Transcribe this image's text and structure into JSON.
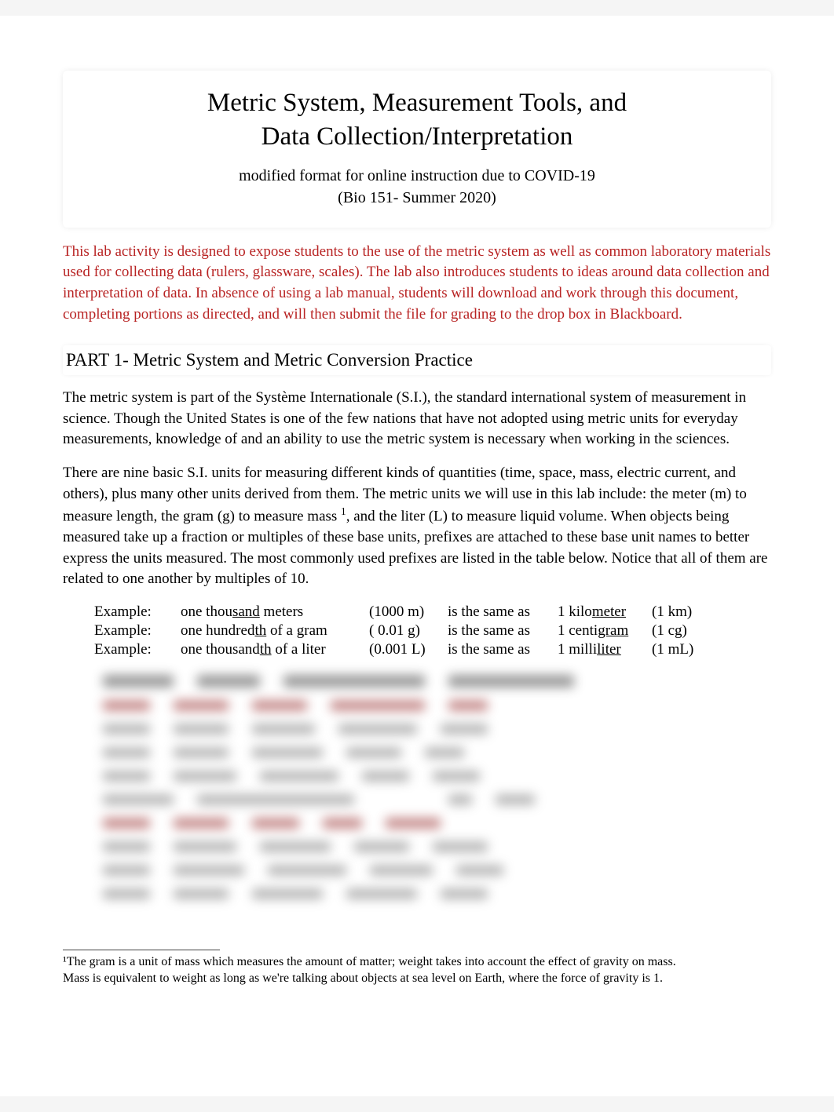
{
  "colors": {
    "text": "#000000",
    "red_text": "#b82323",
    "page_bg": "#ffffff"
  },
  "title": {
    "line1": "Metric System, Measurement Tools, and",
    "line2": "Data Collection/Interpretation",
    "sub1": "modified format for online instruction due to COVID-19",
    "sub2": "(Bio 151- Summer 2020)"
  },
  "intro_red": "This lab activity is designed to expose students to the use of the metric system as well as common laboratory materials used for collecting data (rulers, glassware, scales).   The lab also introduces students to ideas around data collection and interpretation of data.    In absence of using a lab manual, students will download and work through this document, completing portions as directed, and will then submit the file for grading to the drop box in Blackboard.",
  "part1_header": "PART 1- Metric System and Metric Conversion Practice",
  "para1": {
    "pre": "The metric system is part of the ",
    "si_term": "Système Internationale",
    "post": " (S.I.), the standard international system of measurement in science. Though the United States is one of the few nations that have not adopted using metric units for everyday measurements, knowledge of and an ability to use the metric system is necessary when working in the sciences."
  },
  "para2": {
    "a": "There are nine basic S.I. units for measuring different kinds of quantities (time, space, mass, electric current, and others), plus many other units derived from them. The metric units we will use in this lab include: the ",
    "meter": "meter",
    "b": " (m) to measure length, the  ",
    "gram": "gram",
    "c": " (g) to measure mass ",
    "d": ", and the ",
    "liter": "liter",
    "e": " (L) to measure liquid volume.  When objects being measured take up a fraction or multiples of these base units, prefixes are attached to these base unit names to better express the units measured. The most commonly used prefixes are listed in the table below.  Notice that all of them are related to one another by multiples of 10."
  },
  "examples": [
    {
      "label": "Example:",
      "qty": "one thou",
      "u": "sand",
      "unit": " meters",
      "val": "(1000 m)",
      "same": "is the same as",
      "name1": "1 kilo",
      "name2": "meter",
      "sym": "(1 km)"
    },
    {
      "label": "Example:",
      "qty": "one hundred",
      "u": "th",
      "unit": " of a gram",
      "val": "(  0.01 g)",
      "same": "is the same as",
      "name1": "1 centi",
      "name2": "gram",
      "sym": "(1 cg)"
    },
    {
      "label": "Example:",
      "qty": "one thousand",
      "u": "th",
      "unit": " of a liter",
      "val": "(0.001 L)",
      "same": "is the same as",
      "name1": "1 milli",
      "name2": "liter",
      "sym": "(1 mL)"
    }
  ],
  "footnote": {
    "l1": "¹The gram is a unit of mass which measures the amount of matter;   weight takes into account the effect of gravity on mass.",
    "l2": "  Mass is equivalent to weight as long as we're talking about objects  at sea level on Earth, where the force of gravity is 1."
  },
  "blur_widths": {
    "header": [
      90,
      80,
      180,
      160
    ],
    "rows": [
      [
        60,
        70,
        70,
        120,
        50
      ],
      [
        60,
        70,
        80,
        100,
        60
      ],
      [
        60,
        70,
        90,
        70,
        50
      ],
      [
        60,
        80,
        100,
        60,
        60
      ],
      [
        90,
        200,
        0,
        30,
        50
      ],
      [
        60,
        70,
        60,
        50,
        70
      ],
      [
        60,
        80,
        90,
        70,
        70
      ],
      [
        60,
        90,
        100,
        80,
        60
      ],
      [
        60,
        70,
        90,
        90,
        60
      ]
    ]
  }
}
